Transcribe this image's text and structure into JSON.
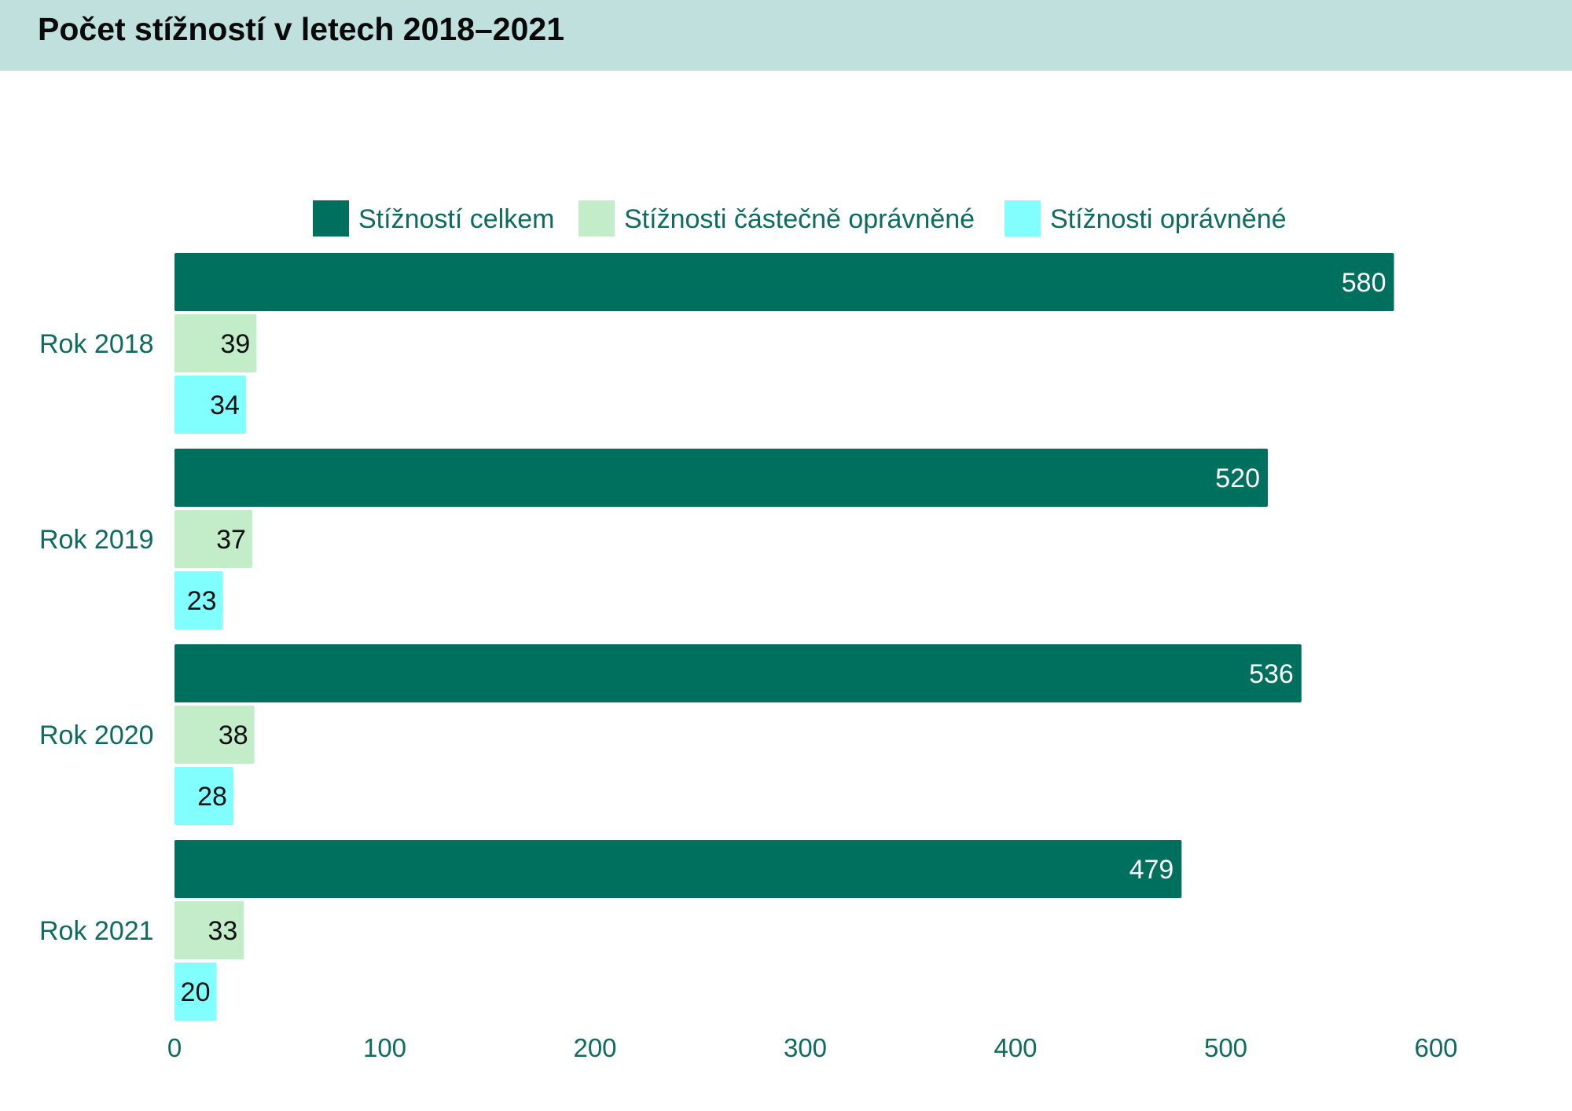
{
  "chart_data": {
    "type": "bar",
    "orientation": "horizontal",
    "title": "Počet stížností v letech 2018–2021",
    "categories": [
      "Rok 2018",
      "Rok 2019",
      "Rok 2020",
      "Rok 2021"
    ],
    "series": [
      {
        "name": "Stížností celkem",
        "values": [
          580,
          520,
          536,
          479
        ],
        "color": "#00705e"
      },
      {
        "name": "Stížnosti částečně oprávněné",
        "values": [
          39,
          37,
          38,
          33
        ],
        "color": "#c3ecc8"
      },
      {
        "name": "Stížnosti oprávněné",
        "values": [
          34,
          23,
          28,
          20
        ],
        "color": "#80fffe"
      }
    ],
    "xlim": [
      0,
      600
    ],
    "ticks": [
      0,
      100,
      200,
      300,
      400,
      500,
      600
    ],
    "grid": false,
    "legend_position": "top-center",
    "text_color": "#0e6b5d"
  }
}
